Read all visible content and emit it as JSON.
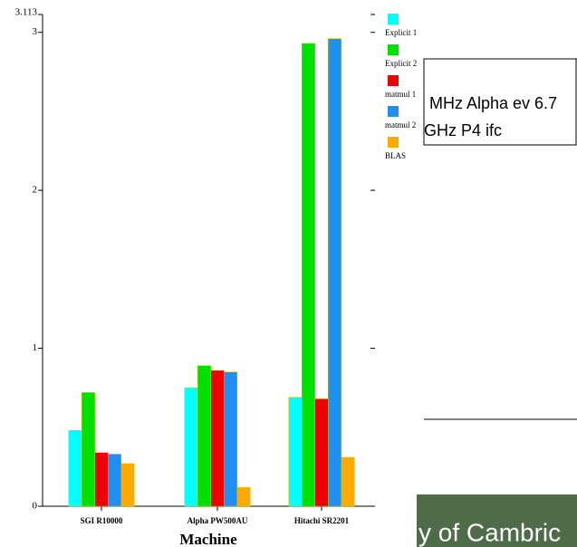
{
  "chart_data": {
    "type": "bar",
    "x_label": "Machine",
    "categories": [
      "SGI R10000",
      "Alpha PW500AU",
      "Hitachi SR2201"
    ],
    "series": [
      {
        "name": "Explicit 1",
        "color": "#00ffff",
        "values": [
          0.48,
          0.75,
          0.69
        ]
      },
      {
        "name": "Explicit 2",
        "color": "#00e000",
        "values": [
          0.72,
          0.89,
          2.93
        ]
      },
      {
        "name": "matmul 1",
        "color": "#ee0000",
        "values": [
          0.34,
          0.86,
          0.68
        ]
      },
      {
        "name": "matmul 2",
        "color": "#2090f0",
        "values": [
          0.33,
          0.85,
          2.96
        ]
      },
      {
        "name": "BLAS",
        "color": "#ffaa00",
        "values": [
          0.27,
          0.12,
          0.31
        ]
      }
    ],
    "ylim": [
      0,
      3.113
    ],
    "yticks": [
      0,
      1,
      2,
      3,
      3.113
    ],
    "legend": "right"
  },
  "background": {
    "lines": [
      "MHz Alpha ev 6.7",
      "GHz P4 ifc"
    ],
    "banner": "y of Cambric"
  }
}
